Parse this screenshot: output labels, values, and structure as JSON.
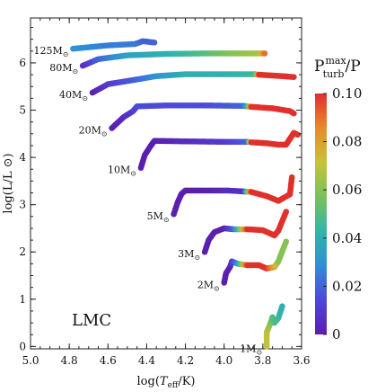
{
  "chart_data": {
    "type": "scatter",
    "title": "",
    "xlabel": "log(T_eff/K)",
    "ylabel": "log(L/L ⊙)",
    "x_ticks": [
      "5.0",
      "4.8",
      "4.6",
      "4.4",
      "4.2",
      "4.0",
      "3.8",
      "3.6"
    ],
    "y_ticks": [
      "0",
      "1",
      "2",
      "3",
      "4",
      "5",
      "6"
    ],
    "xlim": [
      5.0,
      3.6
    ],
    "x_reversed": true,
    "ylim": [
      -0.05,
      6.95
    ],
    "annotation": "LMC",
    "colorbar": {
      "label_base": "P",
      "label_sup": "max",
      "label_sub": "turb",
      "label_suffix": "/P",
      "ticks": [
        "0",
        "0.02",
        "0.04",
        "0.06",
        "0.08",
        "0.10"
      ],
      "range": [
        0,
        0.1
      ],
      "colors": [
        "#5b1fb0",
        "#4f46d8",
        "#2f8fd6",
        "#31b6a8",
        "#78c25a",
        "#c7c23a",
        "#e98a2d",
        "#e0302c"
      ]
    },
    "series": [
      {
        "name": "125M⊙",
        "label": "125M",
        "points": [
          [
            4.78,
            6.3,
            0.03
          ],
          [
            4.6,
            6.37,
            0.025
          ],
          [
            4.46,
            6.4,
            0.025
          ],
          [
            4.42,
            6.46,
            0.02
          ],
          [
            4.36,
            6.43,
            0.02
          ]
        ]
      },
      {
        "name": "80M⊙",
        "label": "80M",
        "points": [
          [
            4.73,
            5.94,
            0.005
          ],
          [
            4.65,
            6.08,
            0.02
          ],
          [
            4.5,
            6.16,
            0.035
          ],
          [
            4.3,
            6.19,
            0.04
          ],
          [
            4.1,
            6.2,
            0.05
          ],
          [
            3.95,
            6.2,
            0.06
          ],
          [
            3.82,
            6.2,
            0.065
          ],
          [
            3.79,
            6.2,
            0.09
          ]
        ]
      },
      {
        "name": "40M⊙",
        "label": "40M",
        "points": [
          [
            4.68,
            5.37,
            0.0
          ],
          [
            4.6,
            5.55,
            0.01
          ],
          [
            4.45,
            5.65,
            0.02
          ],
          [
            4.35,
            5.72,
            0.03
          ],
          [
            4.2,
            5.76,
            0.04
          ],
          [
            4.0,
            5.76,
            0.04
          ],
          [
            3.84,
            5.76,
            0.045
          ],
          [
            3.82,
            5.75,
            0.1
          ],
          [
            3.7,
            5.72,
            0.1
          ],
          [
            3.64,
            5.7,
            0.1
          ]
        ]
      },
      {
        "name": "20M⊙",
        "label": "20M",
        "points": [
          [
            4.58,
            4.62,
            0.0
          ],
          [
            4.52,
            4.85,
            0.005
          ],
          [
            4.47,
            4.98,
            0.01
          ],
          [
            4.45,
            5.08,
            0.015
          ],
          [
            4.3,
            5.1,
            0.015
          ],
          [
            4.1,
            5.1,
            0.015
          ],
          [
            3.9,
            5.09,
            0.02
          ],
          [
            3.88,
            5.08,
            0.04
          ],
          [
            3.86,
            5.07,
            0.1
          ],
          [
            3.75,
            5.04,
            0.1
          ],
          [
            3.66,
            4.98,
            0.1
          ],
          [
            3.64,
            4.93,
            0.1
          ]
        ]
      },
      {
        "name": "10M⊙",
        "label": "10M",
        "points": [
          [
            4.43,
            3.78,
            0.0
          ],
          [
            4.41,
            4.05,
            0.0
          ],
          [
            4.38,
            4.24,
            0.0
          ],
          [
            4.36,
            4.35,
            0.0
          ],
          [
            4.2,
            4.34,
            0.005
          ],
          [
            4.0,
            4.33,
            0.01
          ],
          [
            3.88,
            4.33,
            0.02
          ],
          [
            3.86,
            4.32,
            0.1
          ],
          [
            3.78,
            4.3,
            0.1
          ],
          [
            3.72,
            4.27,
            0.1
          ],
          [
            3.68,
            4.27,
            0.1
          ],
          [
            3.64,
            4.52,
            0.1
          ],
          [
            3.62,
            4.48,
            0.1
          ]
        ]
      },
      {
        "name": "5M⊙",
        "label": "5M",
        "points": [
          [
            4.26,
            2.8,
            0.0
          ],
          [
            4.24,
            3.05,
            0.0
          ],
          [
            4.22,
            3.23,
            0.0
          ],
          [
            4.2,
            3.3,
            0.0
          ],
          [
            4.1,
            3.3,
            0.0
          ],
          [
            3.98,
            3.3,
            0.005
          ],
          [
            3.9,
            3.28,
            0.005
          ],
          [
            3.86,
            3.27,
            0.1
          ],
          [
            3.78,
            3.18,
            0.1
          ],
          [
            3.72,
            3.08,
            0.1
          ],
          [
            3.66,
            3.22,
            0.1
          ],
          [
            3.65,
            3.58,
            0.1
          ]
        ]
      },
      {
        "name": "3M⊙",
        "label": "3M",
        "points": [
          [
            4.1,
            2.0,
            0.0
          ],
          [
            4.08,
            2.25,
            0.0
          ],
          [
            4.05,
            2.42,
            0.0
          ],
          [
            4.0,
            2.5,
            0.0
          ],
          [
            3.95,
            2.48,
            0.02
          ],
          [
            3.88,
            2.48,
            0.1
          ],
          [
            3.8,
            2.46,
            0.1
          ],
          [
            3.74,
            2.35,
            0.1
          ],
          [
            3.72,
            2.45,
            0.1
          ],
          [
            3.68,
            2.85,
            0.1
          ]
        ]
      },
      {
        "name": "2M⊙",
        "label": "2M",
        "points": [
          [
            4.0,
            1.35,
            0.0
          ],
          [
            3.99,
            1.55,
            0.0
          ],
          [
            3.97,
            1.68,
            0.0
          ],
          [
            3.96,
            1.8,
            0.01
          ],
          [
            3.93,
            1.75,
            0.03
          ],
          [
            3.88,
            1.72,
            0.1
          ],
          [
            3.82,
            1.72,
            0.1
          ],
          [
            3.78,
            1.65,
            0.1
          ],
          [
            3.74,
            1.68,
            0.08
          ],
          [
            3.72,
            1.8,
            0.06
          ],
          [
            3.68,
            2.22,
            0.06
          ]
        ]
      },
      {
        "name": "1M⊙",
        "label": "1M",
        "points": [
          [
            3.78,
            0.0,
            0.07
          ],
          [
            3.78,
            0.3,
            0.07
          ],
          [
            3.76,
            0.5,
            0.06
          ],
          [
            3.75,
            0.62,
            0.05
          ],
          [
            3.74,
            0.5,
            0.05
          ],
          [
            3.72,
            0.6,
            0.045
          ],
          [
            3.7,
            0.85,
            0.04
          ]
        ]
      }
    ]
  }
}
